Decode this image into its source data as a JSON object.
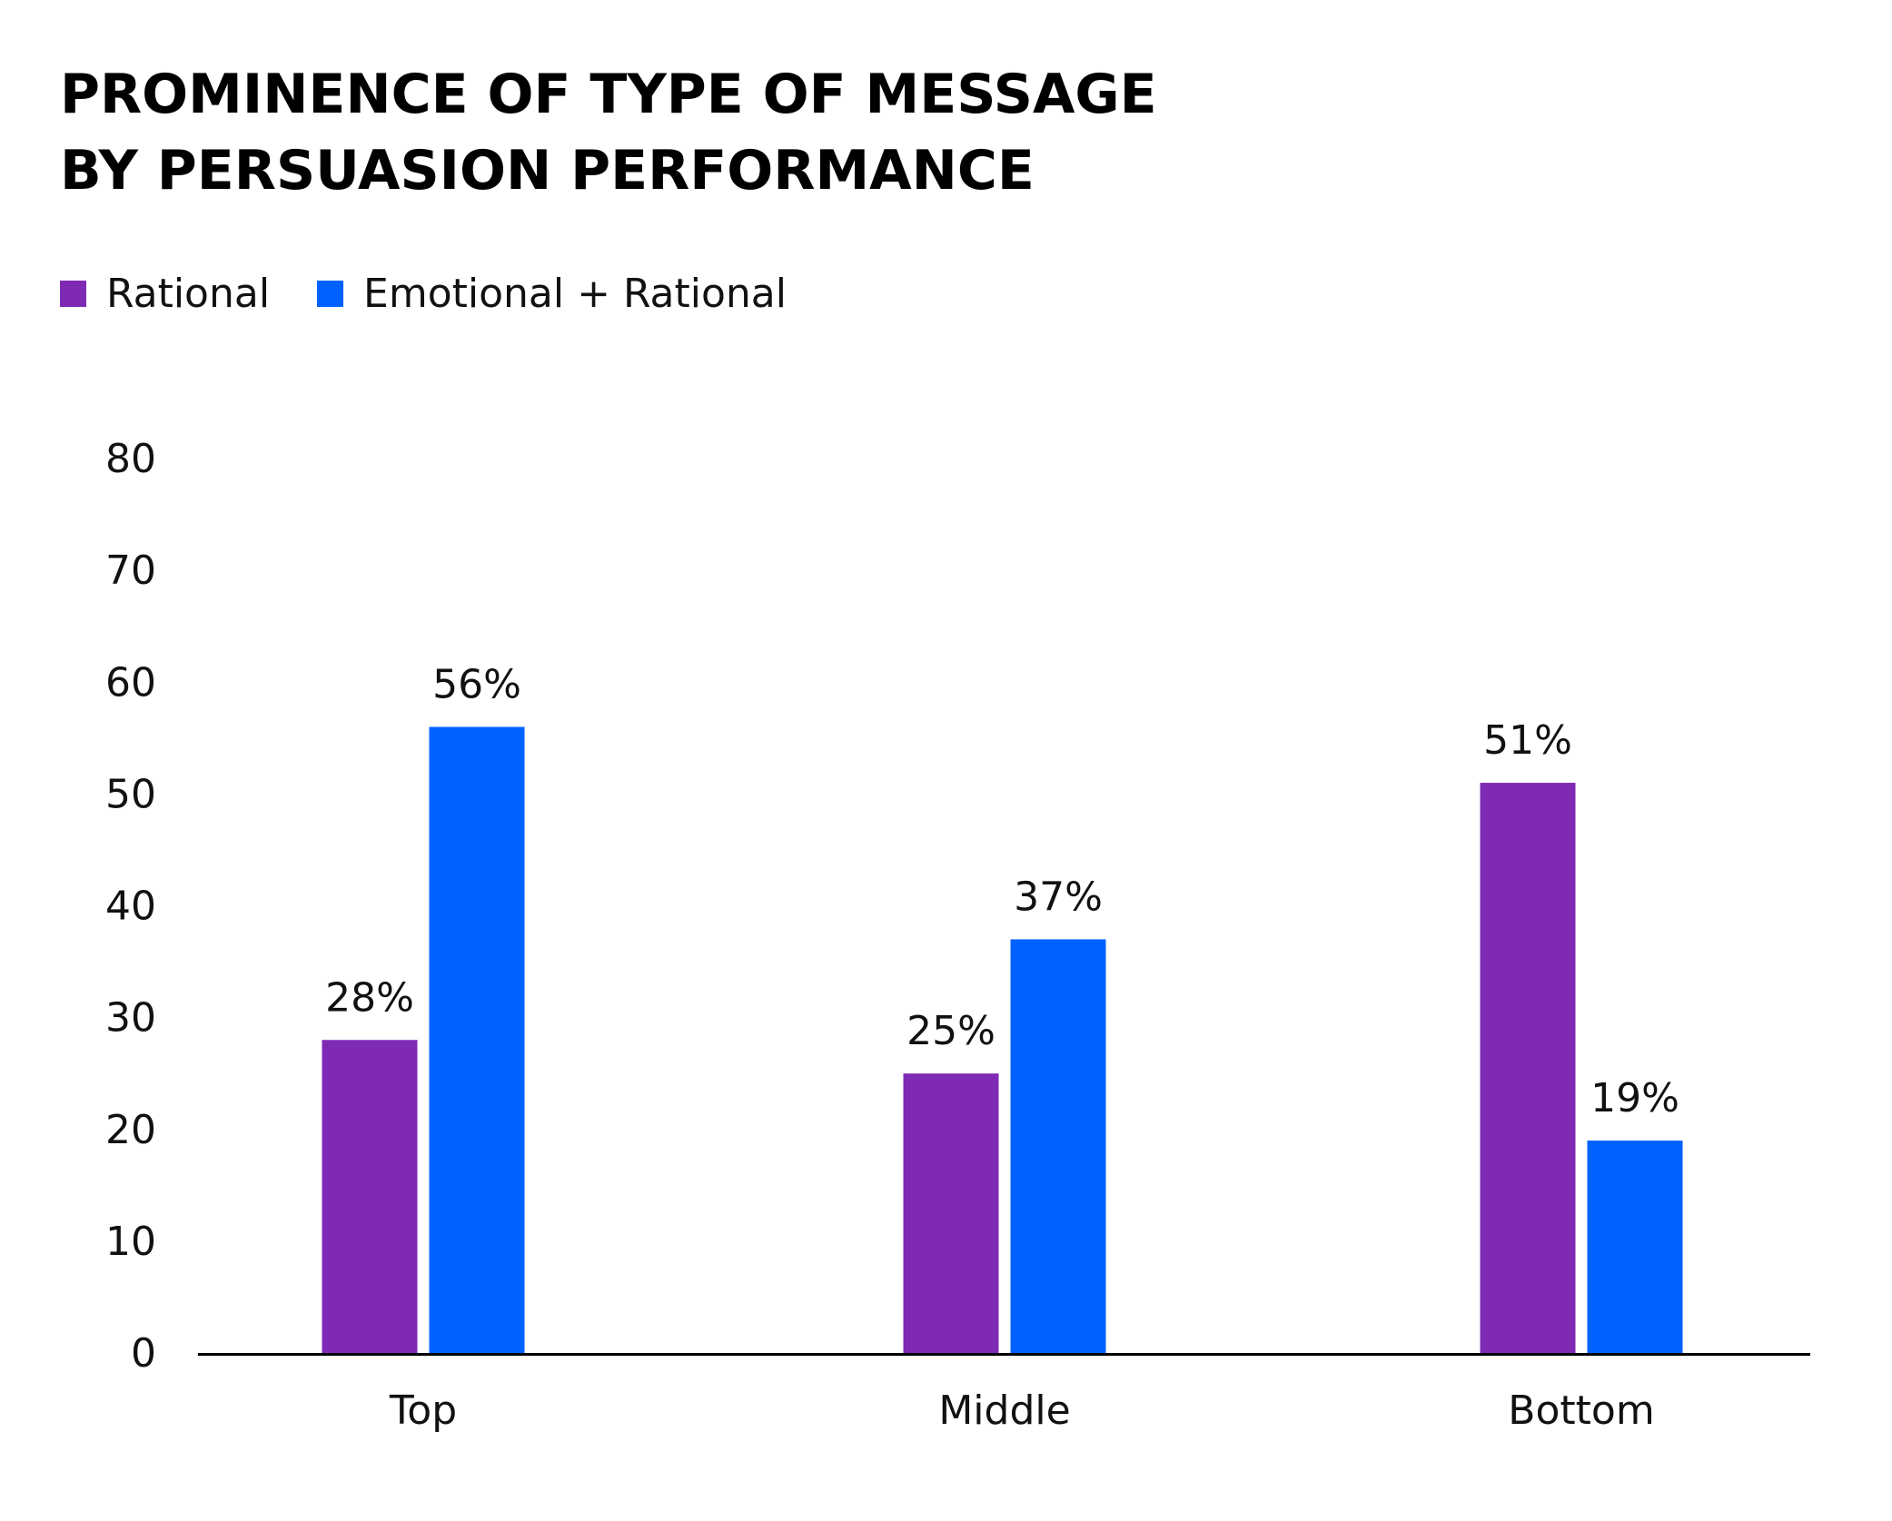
{
  "chart_data": {
    "type": "bar",
    "title": [
      "PROMINENCE OF TYPE OF MESSAGE",
      "BY PERSUASION PERFORMANCE"
    ],
    "categories": [
      "Top",
      "Middle",
      "Bottom"
    ],
    "series": [
      {
        "name": "Rational",
        "color": "#7e2ab5",
        "values": [
          28,
          25,
          51
        ],
        "labels": [
          "28%",
          "25%",
          "51%"
        ]
      },
      {
        "name": "Emotional + Rational",
        "color": "#0062fe",
        "values": [
          56,
          37,
          19
        ],
        "labels": [
          "56%",
          "37%",
          "19%"
        ]
      }
    ],
    "yticks": [
      "0",
      "10",
      "20",
      "30",
      "40",
      "50",
      "60",
      "70",
      "80"
    ],
    "ylim": [
      0,
      80
    ],
    "xlabel": "",
    "ylabel": "",
    "grid": false,
    "legend_position": "top-left"
  }
}
